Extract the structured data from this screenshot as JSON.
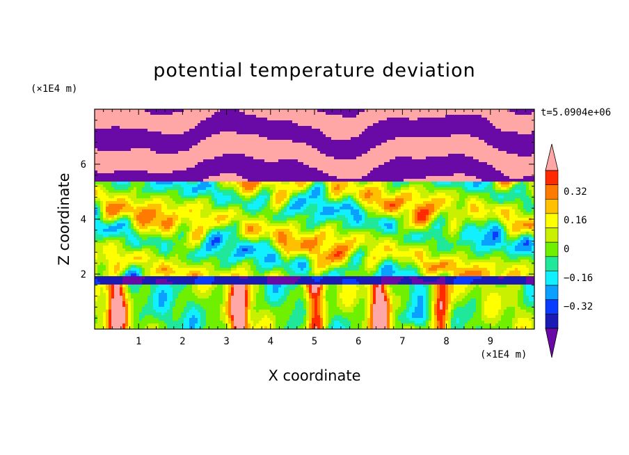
{
  "chart_data": {
    "type": "heatmap",
    "title": "potential temperature deviation",
    "xlabel": "X coordinate",
    "ylabel": "Z coordinate",
    "x_unit": "(×1E4 m)",
    "y_unit": "(×1E4 m)",
    "time_label": "t=5.0904e+06",
    "xlim": [
      0,
      10
    ],
    "ylim": [
      0,
      8
    ],
    "x_ticks": [
      "1",
      "2",
      "3",
      "4",
      "5",
      "6",
      "7",
      "8",
      "9"
    ],
    "y_ticks": [
      "2",
      "4",
      "6"
    ],
    "colorbar": {
      "levels": [
        -0.48,
        -0.4,
        -0.32,
        -0.24,
        -0.16,
        -0.08,
        0,
        0.08,
        0.16,
        0.24,
        0.32,
        0.4,
        0.48
      ],
      "labels": [
        "0.32",
        "0.16",
        "0",
        "−0.16",
        "−0.32"
      ],
      "colors": [
        "#6a0aa6",
        "#1a1ab4",
        "#0a3cff",
        "#0aa0ff",
        "#10f0ff",
        "#20e89a",
        "#6ff000",
        "#c8f000",
        "#ffff00",
        "#ffc000",
        "#ff7a00",
        "#ff2a00",
        "#ffa6a6"
      ],
      "extend": "both"
    }
  }
}
